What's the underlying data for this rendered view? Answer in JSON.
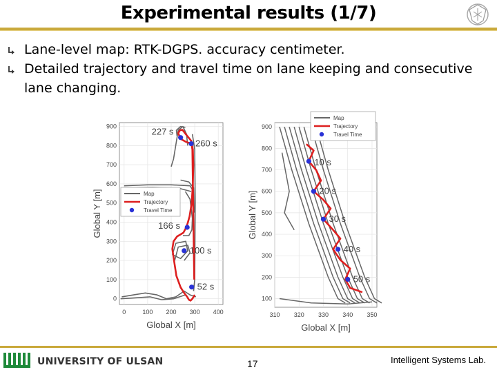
{
  "slide": {
    "title": "Experimental results (1/7)",
    "bullets": [
      "Lane-level map: RTK-DGPS. accuracy centimeter.",
      "Detailed trajectory and travel time on lane keeping and consecutive lane changing."
    ],
    "footer": {
      "university": "UNIVERSITY OF ULSAN",
      "page_number": "17",
      "lab": "Intelligent Systems Lab."
    },
    "colors": {
      "accent_gold": "#c9a93b",
      "trajectory": "#dd1f1f",
      "map": "#666666",
      "travel_time": "#2a32d6"
    }
  },
  "chart_data": [
    {
      "type": "line",
      "xlabel": "Global X  [m]",
      "ylabel": "Global Y  [m]",
      "xlim": [
        -20,
        420
      ],
      "ylim": [
        -30,
        920
      ],
      "xticks": [
        0,
        100,
        200,
        300,
        400
      ],
      "yticks": [
        0,
        100,
        200,
        300,
        400,
        500,
        600,
        700,
        800,
        900
      ],
      "legend": {
        "position": "middle-left",
        "entries": [
          "Map",
          "Trajectory",
          "Travel Time"
        ]
      },
      "grid": true,
      "series": [
        {
          "name": "Trajectory",
          "x": [
            300,
            290,
            282,
            275,
            268,
            255,
            240,
            222,
            212,
            205,
            210,
            225,
            238,
            252,
            262,
            270,
            278,
            287,
            292,
            294,
            292,
            285,
            262,
            248,
            237,
            230,
            240,
            262,
            286,
            290,
            298
          ],
          "y": [
            20,
            0,
            -10,
            -5,
            10,
            30,
            60,
            120,
            200,
            260,
            300,
            325,
            335,
            345,
            368,
            395,
            430,
            500,
            600,
            700,
            780,
            825,
            860,
            882,
            880,
            865,
            835,
            820,
            810,
            780,
            100
          ]
        }
      ],
      "travel_time_points": [
        {
          "label": "227 s",
          "x": 240,
          "y": 842
        },
        {
          "label": "260 s",
          "x": 285,
          "y": 810
        },
        {
          "label": "166 s",
          "x": 268,
          "y": 373
        },
        {
          "label": "100 s",
          "x": 255,
          "y": 251
        },
        {
          "label": "52 s",
          "x": 287,
          "y": 61
        }
      ]
    },
    {
      "type": "line",
      "xlabel": "Global X  [m]",
      "ylabel": "Global Y  [m]",
      "xlim": [
        310,
        352
      ],
      "ylim": [
        60,
        920
      ],
      "xticks": [
        310,
        320,
        330,
        340,
        350
      ],
      "yticks": [
        100,
        200,
        300,
        400,
        500,
        600,
        700,
        800,
        900
      ],
      "legend": {
        "position": "top-right",
        "entries": [
          "Map",
          "Trajectory",
          "Travel Time"
        ]
      },
      "grid": true,
      "series": [
        {
          "name": "Trajectory",
          "x": [
            323,
            326,
            324,
            327,
            329,
            326,
            330,
            333,
            330,
            334,
            337,
            334,
            337,
            341,
            339,
            341,
            346
          ],
          "y": [
            820,
            790,
            740,
            700,
            650,
            600,
            560,
            520,
            470,
            420,
            380,
            330,
            280,
            240,
            190,
            150,
            130
          ]
        }
      ],
      "travel_time_points": [
        {
          "label": "10 s",
          "x": 324,
          "y": 740
        },
        {
          "label": "20 s",
          "x": 326,
          "y": 600
        },
        {
          "label": "30 s",
          "x": 330,
          "y": 470
        },
        {
          "label": "40 s",
          "x": 336,
          "y": 330
        },
        {
          "label": "50 s",
          "x": 340,
          "y": 190
        }
      ]
    }
  ]
}
